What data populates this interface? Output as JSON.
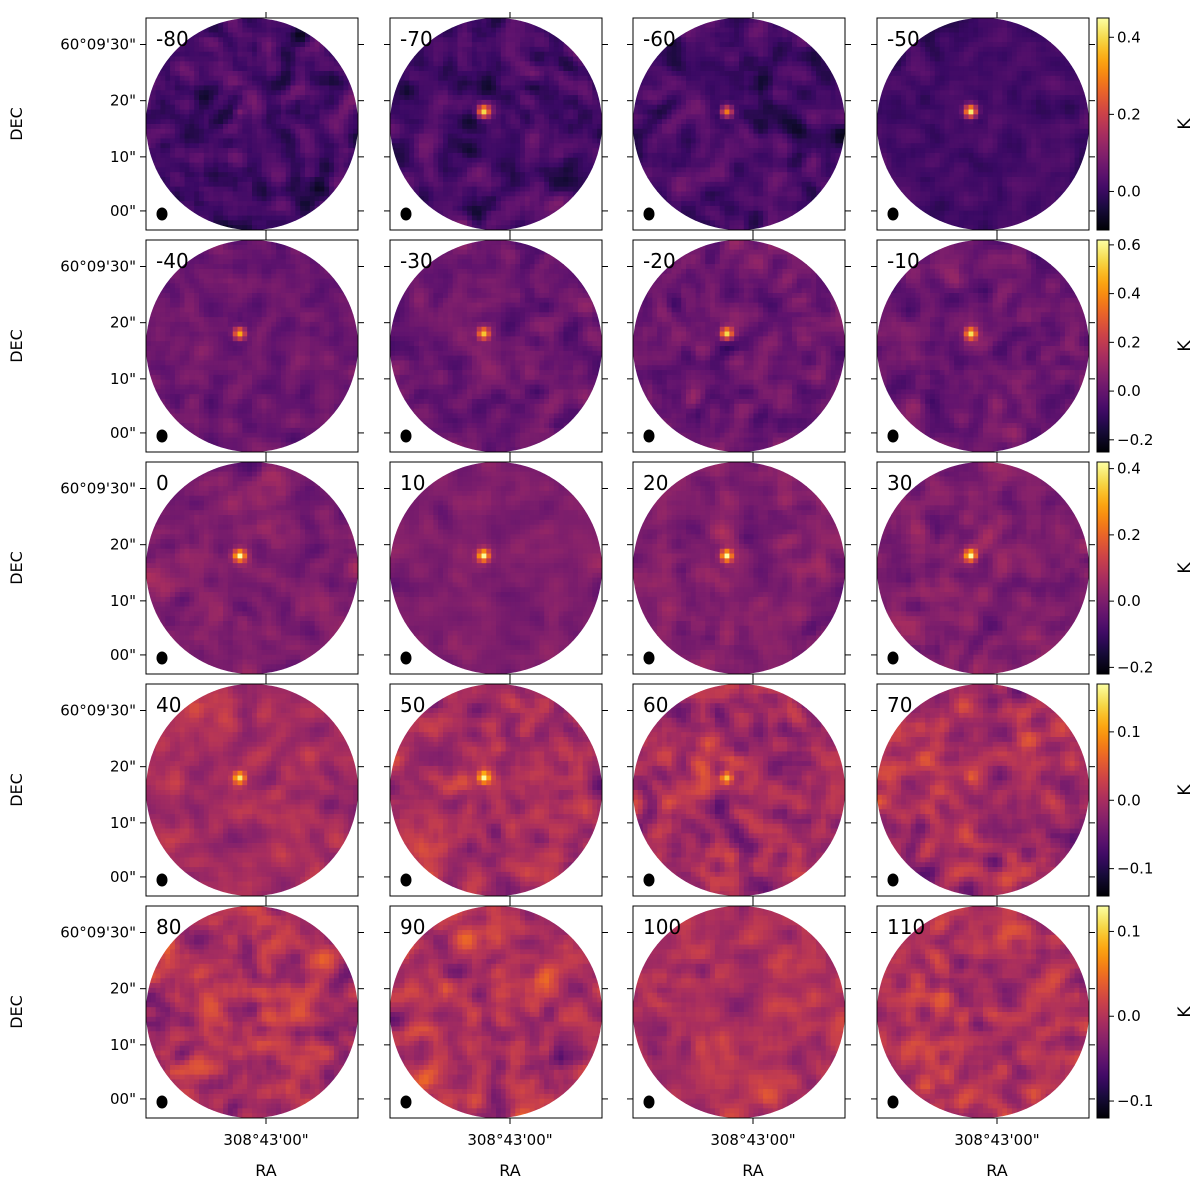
{
  "chart_data": {
    "type": "heatmap",
    "description_units": "velocity channel maps, brightness temperature",
    "axes": {
      "xlabel": "RA",
      "ylabel": "DEC",
      "x_tick_labels": [
        "308°43'00\""
      ],
      "y_tick_labels": [
        "60°09'30\"",
        "20\"",
        "10\"",
        "00\""
      ]
    },
    "colormap": "inferno",
    "colorbar_label": "K",
    "rows": [
      {
        "channels": [
          "-80",
          "-70",
          "-60",
          "-50"
        ],
        "colorbar": {
          "range": [
            -0.1,
            0.45
          ],
          "ticks": [
            "0.4",
            "0.2",
            "0.0"
          ],
          "tick_values": [
            0.4,
            0.2,
            0.0
          ]
        },
        "source_peak": [
          0.1,
          0.35,
          0.3,
          0.4
        ],
        "noise_level": [
          0.55,
          0.55,
          0.55,
          0.3
        ]
      },
      {
        "channels": [
          "-40",
          "-30",
          "-20",
          "-10"
        ],
        "colorbar": {
          "range": [
            -0.25,
            0.62
          ],
          "ticks": [
            "0.6",
            "0.4",
            "0.2",
            "0.0",
            "−0.2"
          ],
          "tick_values": [
            0.6,
            0.4,
            0.2,
            0.0,
            -0.2
          ]
        },
        "source_peak": [
          0.5,
          0.5,
          0.55,
          0.5
        ],
        "noise_level": [
          0.4,
          0.35,
          0.4,
          0.4
        ]
      },
      {
        "channels": [
          "0",
          "10",
          "20",
          "30"
        ],
        "colorbar": {
          "range": [
            -0.22,
            0.42
          ],
          "ticks": [
            "0.4",
            "0.2",
            "0.0",
            "−0.2"
          ],
          "tick_values": [
            0.4,
            0.2,
            0.0,
            -0.2
          ]
        },
        "source_peak": [
          0.4,
          0.4,
          0.42,
          0.42
        ],
        "noise_level": [
          0.35,
          0.3,
          0.4,
          0.4
        ]
      },
      {
        "channels": [
          "40",
          "50",
          "60",
          "70"
        ],
        "colorbar": {
          "range": [
            -0.14,
            0.17
          ],
          "ticks": [
            "0.1",
            "0.0",
            "−0.1"
          ],
          "tick_values": [
            0.1,
            0.0,
            -0.1
          ]
        },
        "source_peak": [
          0.16,
          0.16,
          0.13,
          0.05
        ],
        "noise_level": [
          0.45,
          0.55,
          0.7,
          0.6
        ]
      },
      {
        "channels": [
          "80",
          "90",
          "100",
          "110"
        ],
        "colorbar": {
          "range": [
            -0.12,
            0.13
          ],
          "ticks": [
            "0.1",
            "0.0",
            "−0.1"
          ],
          "tick_values": [
            0.1,
            0.0,
            -0.1
          ]
        },
        "source_peak": [
          0.0,
          0.0,
          0.0,
          0.0
        ],
        "noise_level": [
          0.65,
          0.7,
          0.5,
          0.65
        ]
      }
    ]
  }
}
